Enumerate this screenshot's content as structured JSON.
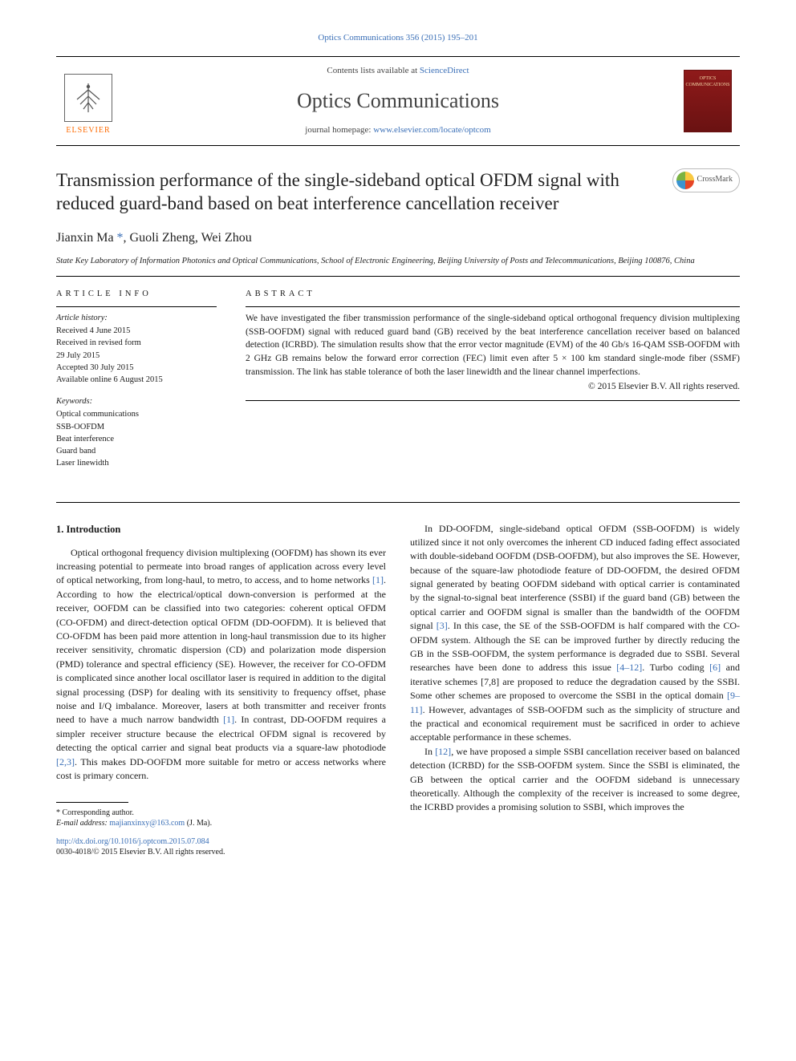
{
  "citation": {
    "journal": "Optics Communications",
    "volume_issue": "356 (2015)",
    "pages": "195–201"
  },
  "masthead": {
    "contents_prefix": "Contents lists available at ",
    "contents_link": "ScienceDirect",
    "journal_name": "Optics Communications",
    "homepage_prefix": "journal homepage: ",
    "homepage_url": "www.elsevier.com/locate/optcom",
    "elsevier": "ELSEVIER",
    "cover_text": "OPTICS\nCOMMUNICATIONS"
  },
  "article": {
    "title": "Transmission performance of the single-sideband optical OFDM signal with reduced guard-band based on beat interference cancellation receiver",
    "crossmark": "CrossMark",
    "authors_html": "Jianxin Ma <span class=\"star\">*</span>, Guoli Zheng, Wei Zhou",
    "affiliation": "State Key Laboratory of Information Photonics and Optical Communications, School of Electronic Engineering, Beijing University of Posts and Telecommunications, Beijing 100876, China"
  },
  "info": {
    "heading": "ARTICLE INFO",
    "history_label": "Article history:",
    "history": [
      "Received 4 June 2015",
      "Received in revised form",
      "29 July 2015",
      "Accepted 30 July 2015",
      "Available online 6 August 2015"
    ],
    "keywords_label": "Keywords:",
    "keywords": [
      "Optical communications",
      "SSB-OOFDM",
      "Beat interference",
      "Guard band",
      "Laser linewidth"
    ]
  },
  "abstract": {
    "heading": "ABSTRACT",
    "text": "We have investigated the fiber transmission performance of the single-sideband optical orthogonal frequency division multiplexing (SSB-OOFDM) signal with reduced guard band (GB) received by the beat interference cancellation receiver based on balanced detection (ICRBD). The simulation results show that the error vector magnitude (EVM) of the 40 Gb/s 16-QAM SSB-OOFDM with 2 GHz GB remains below the forward error correction (FEC) limit even after 5 × 100 km standard single-mode fiber (SSMF) transmission. The link has stable tolerance of both the laser linewidth and the linear channel imperfections.",
    "copyright": "© 2015 Elsevier B.V. All rights reserved."
  },
  "body": {
    "section1_heading": "1. Introduction",
    "col1_p1": "Optical orthogonal frequency division multiplexing (OOFDM) has shown its ever increasing potential to permeate into broad ranges of application across every level of optical networking, from long-haul, to metro, to access, and to home networks [1]. According to how the electrical/optical down-conversion is performed at the receiver, OOFDM can be classified into two categories: coherent optical OFDM (CO-OFDM) and direct-detection optical OFDM (DD-OOFDM). It is believed that CO-OFDM has been paid more attention in long-haul transmission due to its higher receiver sensitivity, chromatic dispersion (CD) and polarization mode dispersion (PMD) tolerance and spectral efficiency (SE). However, the receiver for CO-OFDM is complicated since another local oscillator laser is required in addition to the digital signal processing (DSP) for dealing with its sensitivity to frequency offset, phase noise and I/Q imbalance. Moreover, lasers at both transmitter and receiver fronts need to have a much narrow bandwidth [1]. In contrast, DD-OOFDM requires a simpler receiver structure because the electrical OFDM signal is recovered by detecting the optical carrier and signal beat products via a square-law photodiode [2,3]. This makes DD-OOFDM more suitable for metro or access networks where cost is primary concern.",
    "col2_p1": "In DD-OOFDM, single-sideband optical OFDM (SSB-OOFDM) is widely utilized since it not only overcomes the inherent CD induced fading effect associated with double-sideband OOFDM (DSB-OOFDM), but also improves the SE. However, because of the square-law photodiode feature of DD-OOFDM, the desired OFDM signal generated by beating OOFDM sideband with optical carrier is contaminated by the signal-to-signal beat interference (SSBI) if the guard band (GB) between the optical carrier and OOFDM signal is smaller than the bandwidth of the OOFDM signal [3]. In this case, the SE of the SSB-OOFDM is half compared with the CO-OFDM system. Although the SE can be improved further by directly reducing the GB in the SSB-OOFDM, the system performance is degraded due to SSBI. Several researches have been done to address this issue [4–12]. Turbo coding [6] and iterative schemes [7,8] are proposed to reduce the degradation caused by the SSBI. Some other schemes are proposed to overcome the SSBI in the optical domain [9–11]. However, advantages of SSB-OOFDM such as the simplicity of structure and the practical and economical requirement must be sacrificed in order to achieve acceptable performance in these schemes.",
    "col2_p2": "In [12], we have proposed a simple SSBI cancellation receiver based on balanced detection (ICRBD) for the SSB-OOFDM system. Since the SSBI is eliminated, the GB between the optical carrier and the OOFDM sideband is unnecessary theoretically. Although the complexity of the receiver is increased to some degree, the ICRBD provides a promising solution to SSBI, which improves the"
  },
  "footnote": {
    "corr": "* Corresponding author.",
    "email_label": "E-mail address: ",
    "email": "majianxinxy@163.com",
    "email_suffix": " (J. Ma)."
  },
  "bottom": {
    "doi": "http://dx.doi.org/10.1016/j.optcom.2015.07.084",
    "issn_line": "0030-4018/© 2015 Elsevier B.V. All rights reserved."
  },
  "refs_linked": [
    "[1]",
    "[2,3]",
    "[3]",
    "[4–12]",
    "[6]",
    "[9–11]",
    "[12]"
  ]
}
